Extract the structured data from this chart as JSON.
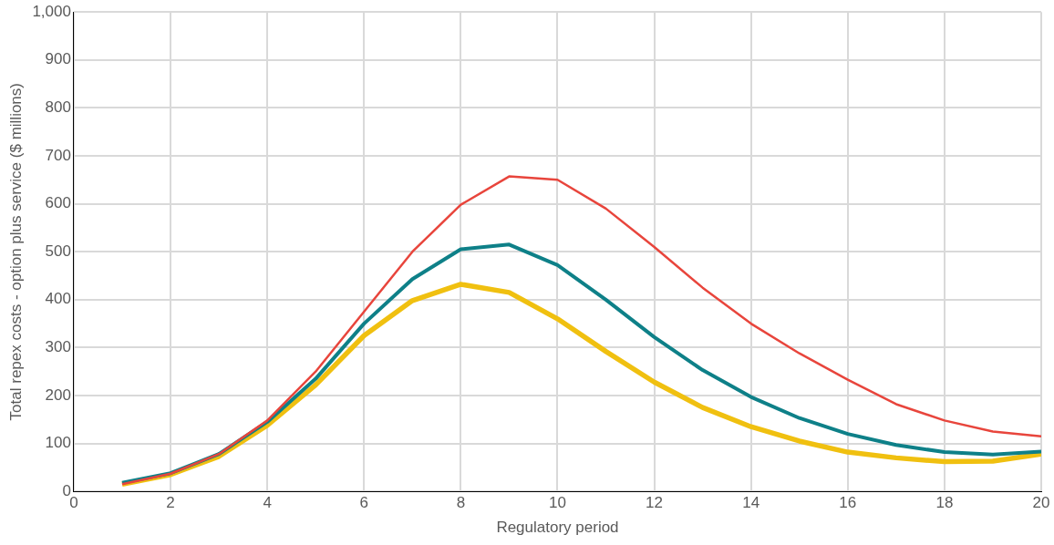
{
  "chart_data": {
    "type": "line",
    "xlabel": "Regulatory period",
    "ylabel": "Total repex costs - option plus service ($ millions)",
    "x": [
      1,
      2,
      3,
      4,
      5,
      6,
      7,
      8,
      9,
      10,
      11,
      12,
      13,
      14,
      15,
      16,
      17,
      18,
      19,
      20
    ],
    "series": [
      {
        "color": "#e8453c",
        "values": [
          15,
          37,
          78,
          148,
          250,
          375,
          500,
          598,
          657,
          650,
          590,
          510,
          425,
          350,
          288,
          233,
          182,
          148,
          125,
          115
        ]
      },
      {
        "color": "#0e8088",
        "values": [
          18,
          38,
          78,
          145,
          235,
          350,
          443,
          505,
          515,
          472,
          400,
          322,
          253,
          197,
          153,
          120,
          97,
          82,
          77,
          83
        ]
      },
      {
        "color": "#f0c010",
        "values": [
          15,
          35,
          73,
          138,
          222,
          325,
          398,
          432,
          415,
          360,
          292,
          228,
          175,
          135,
          105,
          82,
          70,
          62,
          63,
          78
        ]
      }
    ],
    "xlim": [
      0,
      20
    ],
    "xticks": [
      0,
      2,
      4,
      6,
      8,
      10,
      12,
      14,
      16,
      18,
      20
    ],
    "ylim": [
      0,
      1000
    ],
    "yticks": [
      0,
      100,
      200,
      300,
      400,
      500,
      600,
      700,
      800,
      900,
      {
        "value": 1000,
        "label": "1,000"
      }
    ],
    "grid": true,
    "legend": false,
    "marker": "none",
    "line_style": "solid"
  }
}
